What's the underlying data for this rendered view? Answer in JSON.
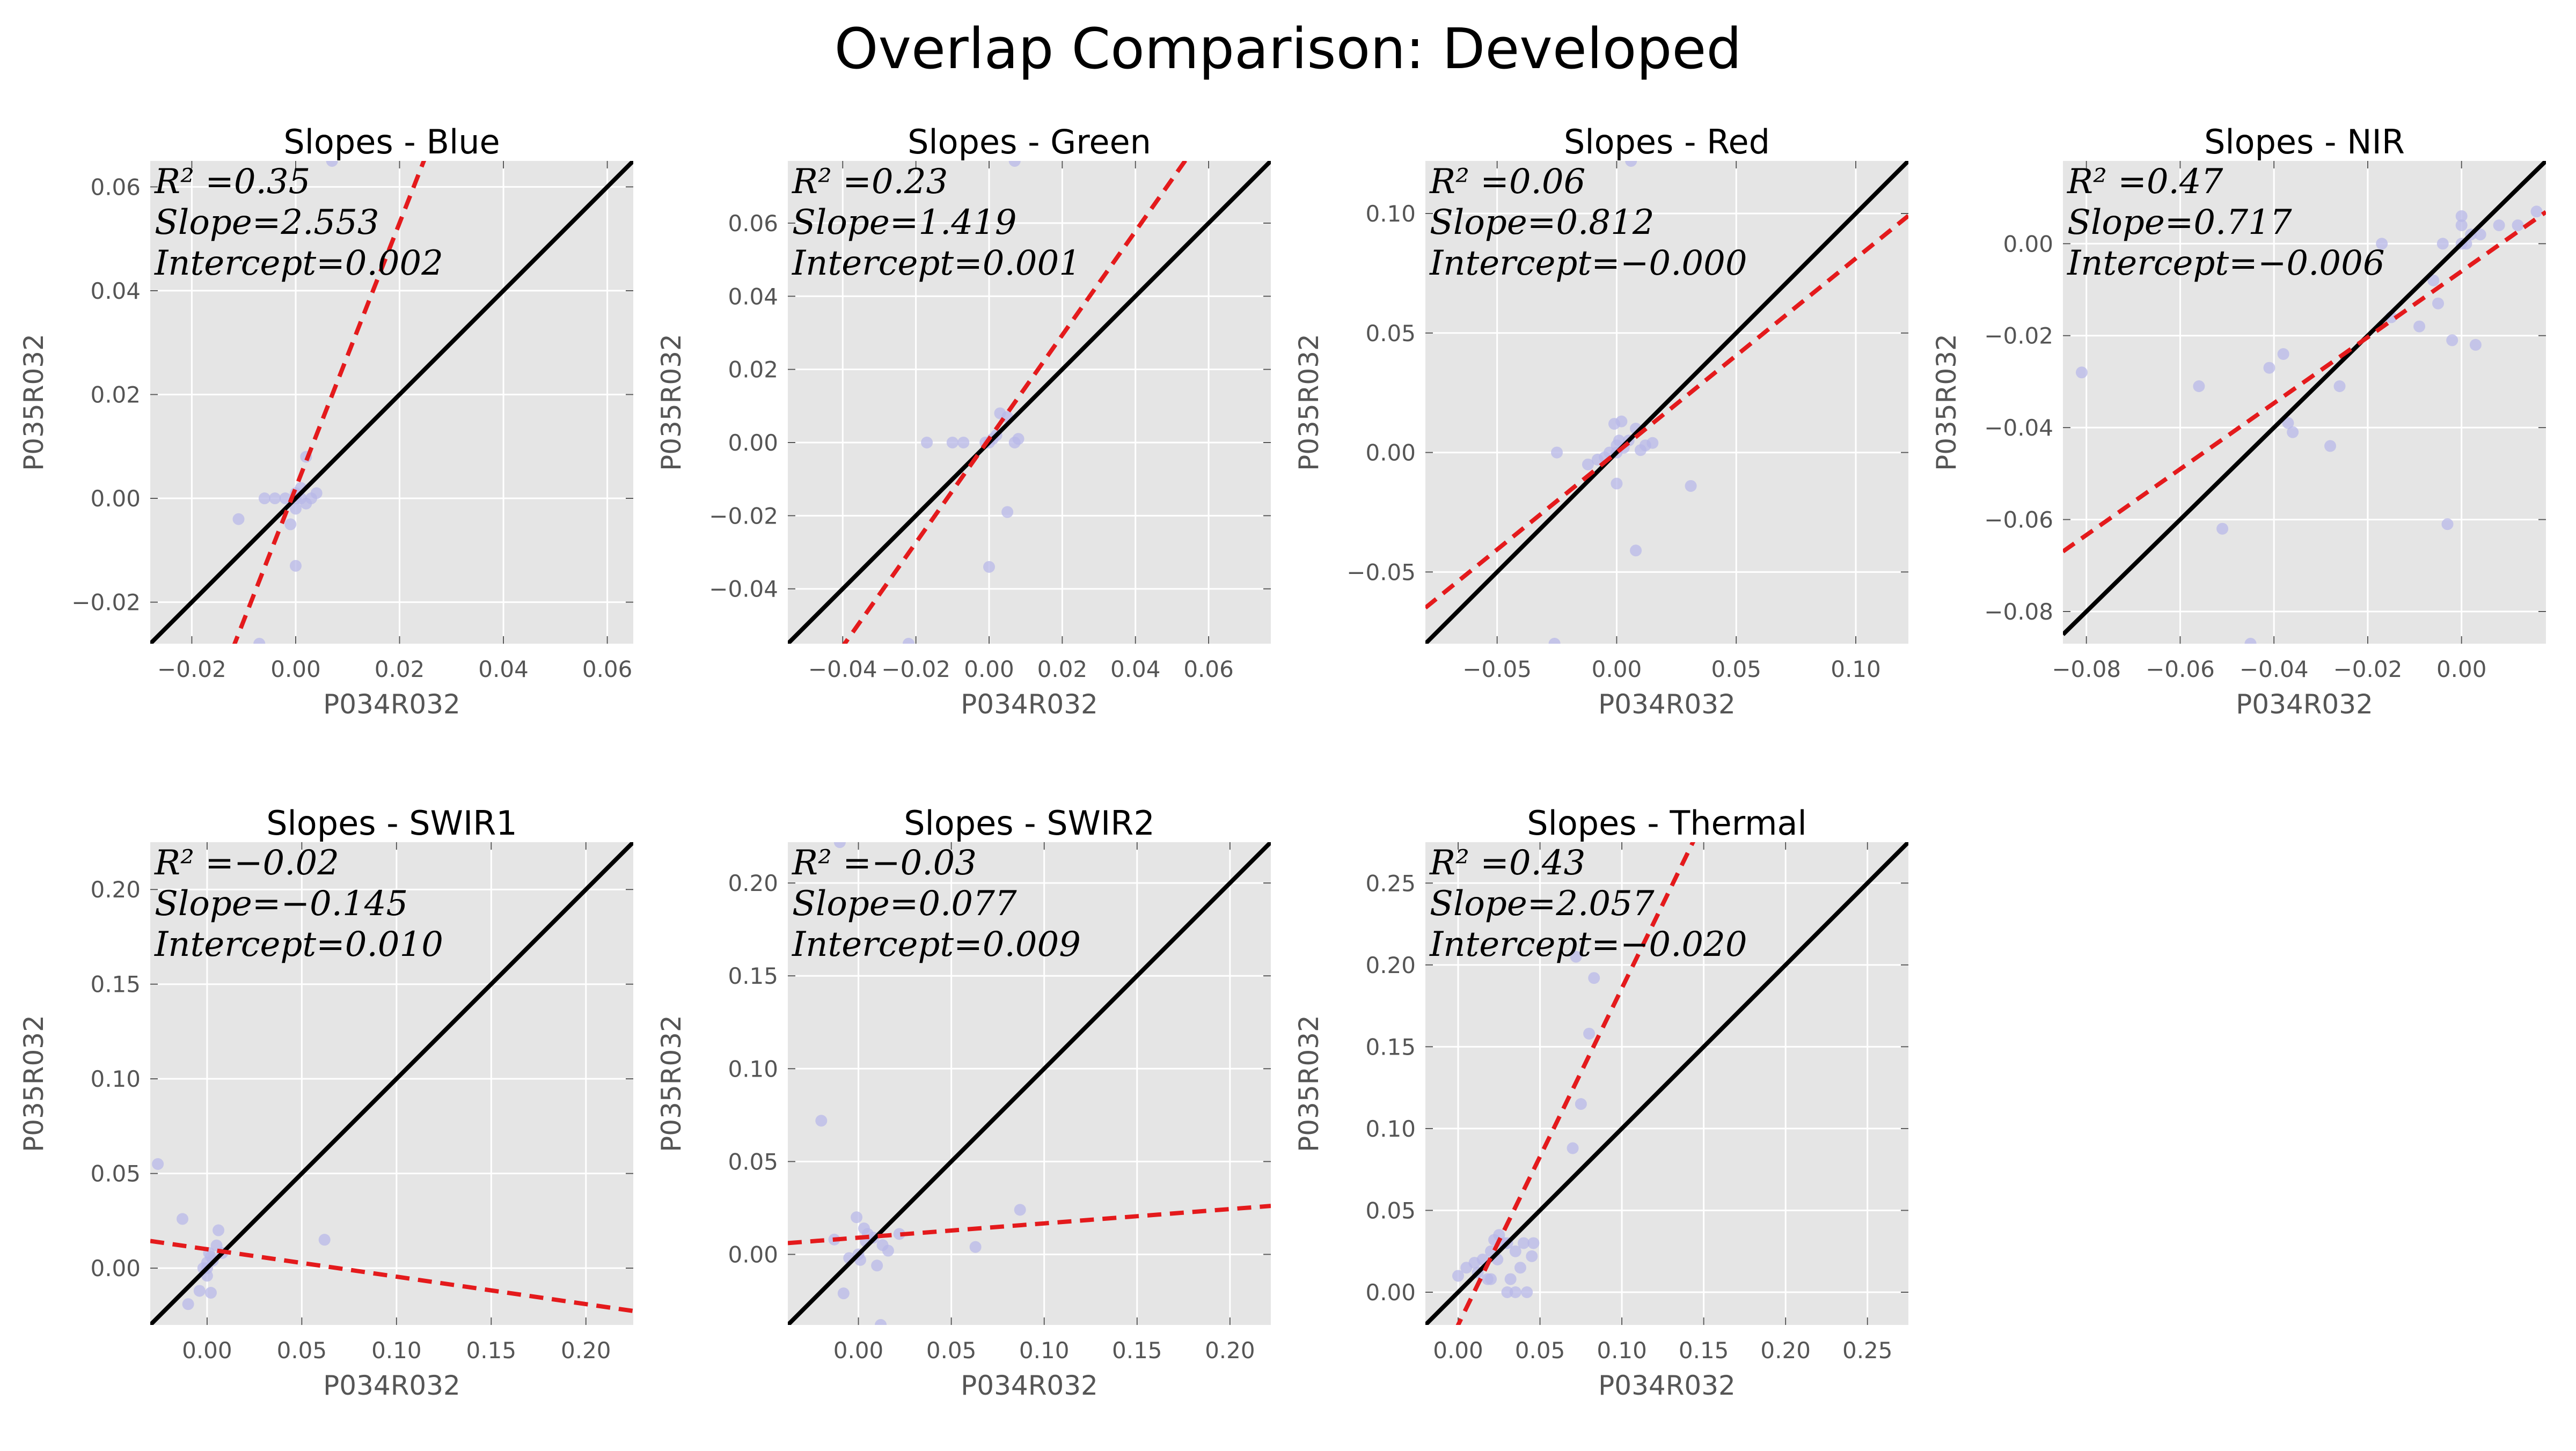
{
  "title": "Overlap Comparison: Developed",
  "colors": {
    "panel_bg": "#e5e5e5",
    "grid": "#ffffff",
    "identity_line": "#000000",
    "fit_line": "#e41a1c",
    "points": "#b8b8e8"
  },
  "chart_data": [
    {
      "type": "scatter",
      "title": "Slopes - Blue",
      "xlabel": "P034R032",
      "ylabel": "P035R032",
      "xlim": [
        -0.028,
        0.065
      ],
      "ylim": [
        -0.028,
        0.065
      ],
      "xticks": [
        -0.02,
        0.0,
        0.02,
        0.04,
        0.06
      ],
      "yticks": [
        -0.02,
        0.0,
        0.02,
        0.04,
        0.06
      ],
      "xtick_labels": [
        "−0.02",
        "0.00",
        "0.02",
        "0.04",
        "0.06"
      ],
      "ytick_labels": [
        "−0.02",
        "0.00",
        "0.02",
        "0.04",
        "0.06"
      ],
      "stats": {
        "r2_label": "R² =0.35",
        "slope_label": "Slope=2.553",
        "intercept_label": "Intercept=0.002"
      },
      "fit": {
        "slope": 2.553,
        "intercept": 0.002
      },
      "grid": true,
      "points": [
        [
          -0.011,
          -0.004
        ],
        [
          -0.006,
          0.0
        ],
        [
          -0.004,
          0.0
        ],
        [
          -0.002,
          0.0
        ],
        [
          -0.001,
          -0.005
        ],
        [
          0.0,
          -0.002
        ],
        [
          0.0,
          0.0
        ],
        [
          0.0,
          0.001
        ],
        [
          0.001,
          0.002
        ],
        [
          0.001,
          0.0
        ],
        [
          0.002,
          -0.001
        ],
        [
          0.002,
          0.008
        ],
        [
          0.003,
          0.0
        ],
        [
          0.004,
          0.001
        ],
        [
          0.0,
          -0.013
        ],
        [
          -0.007,
          -0.028
        ],
        [
          0.007,
          0.065
        ]
      ]
    },
    {
      "type": "scatter",
      "title": "Slopes - Green",
      "xlabel": "P034R032",
      "ylabel": "P035R032",
      "xlim": [
        -0.055,
        0.077
      ],
      "ylim": [
        -0.055,
        0.077
      ],
      "xticks": [
        -0.04,
        -0.02,
        0.0,
        0.02,
        0.04,
        0.06
      ],
      "yticks": [
        -0.04,
        -0.02,
        0.0,
        0.02,
        0.04,
        0.06
      ],
      "xtick_labels": [
        "−0.04",
        "−0.02",
        "0.00",
        "0.02",
        "0.04",
        "0.06"
      ],
      "ytick_labels": [
        "−0.04",
        "−0.02",
        "0.00",
        "0.02",
        "0.04",
        "0.06"
      ],
      "stats": {
        "r2_label": "R² =0.23",
        "slope_label": "Slope=1.419",
        "intercept_label": "Intercept=0.001"
      },
      "fit": {
        "slope": 1.419,
        "intercept": 0.001
      },
      "grid": true,
      "points": [
        [
          -0.017,
          0.0
        ],
        [
          -0.01,
          0.0
        ],
        [
          -0.007,
          0.0
        ],
        [
          -0.001,
          0.0
        ],
        [
          0.0,
          0.0
        ],
        [
          0.001,
          0.001
        ],
        [
          0.002,
          0.002
        ],
        [
          0.003,
          0.008
        ],
        [
          0.005,
          0.007
        ],
        [
          0.007,
          0.0
        ],
        [
          0.008,
          0.001
        ],
        [
          0.005,
          -0.019
        ],
        [
          0.0,
          -0.034
        ],
        [
          -0.022,
          -0.055
        ],
        [
          0.007,
          0.077
        ]
      ]
    },
    {
      "type": "scatter",
      "title": "Slopes - Red",
      "xlabel": "P034R032",
      "ylabel": "P035R032",
      "xlim": [
        -0.08,
        0.122
      ],
      "ylim": [
        -0.08,
        0.122
      ],
      "xticks": [
        -0.05,
        0.0,
        0.05,
        0.1
      ],
      "yticks": [
        -0.05,
        0.0,
        0.05,
        0.1
      ],
      "xtick_labels": [
        "−0.05",
        "0.00",
        "0.05",
        "0.10"
      ],
      "ytick_labels": [
        "−0.05",
        "0.00",
        "0.05",
        "0.10"
      ],
      "stats": {
        "r2_label": "R² =0.06",
        "slope_label": "Slope=0.812",
        "intercept_label": "Intercept=−0.000"
      },
      "fit": {
        "slope": 0.812,
        "intercept": 0.0
      },
      "grid": true,
      "points": [
        [
          -0.025,
          0.0
        ],
        [
          -0.012,
          -0.005
        ],
        [
          -0.008,
          -0.003
        ],
        [
          -0.005,
          -0.002
        ],
        [
          -0.003,
          0.0
        ],
        [
          -0.001,
          0.012
        ],
        [
          0.0,
          0.0
        ],
        [
          0.0,
          0.003
        ],
        [
          0.001,
          0.005
        ],
        [
          0.002,
          0.013
        ],
        [
          0.003,
          0.002
        ],
        [
          0.005,
          0.005
        ],
        [
          0.008,
          0.01
        ],
        [
          0.01,
          0.001
        ],
        [
          0.012,
          0.003
        ],
        [
          0.015,
          0.004
        ],
        [
          0.0,
          -0.013
        ],
        [
          0.008,
          -0.041
        ],
        [
          0.031,
          -0.014
        ],
        [
          -0.026,
          -0.08
        ],
        [
          0.006,
          0.122
        ]
      ]
    },
    {
      "type": "scatter",
      "title": "Slopes - NIR",
      "xlabel": "P034R032",
      "ylabel": "P035R032",
      "xlim": [
        -0.085,
        0.018
      ],
      "ylim": [
        -0.087,
        0.018
      ],
      "xticks": [
        -0.08,
        -0.06,
        -0.04,
        -0.02,
        0.0
      ],
      "yticks": [
        -0.08,
        -0.06,
        -0.04,
        -0.02,
        0.0
      ],
      "xtick_labels": [
        "−0.08",
        "−0.06",
        "−0.04",
        "−0.02",
        "0.00"
      ],
      "ytick_labels": [
        "−0.08",
        "−0.06",
        "−0.04",
        "−0.02",
        "0.00"
      ],
      "stats": {
        "r2_label": "R² =0.47",
        "slope_label": "Slope=0.717",
        "intercept_label": "Intercept=−0.006"
      },
      "fit": {
        "slope": 0.717,
        "intercept": -0.006
      },
      "grid": true,
      "points": [
        [
          -0.081,
          -0.028
        ],
        [
          -0.056,
          -0.031
        ],
        [
          -0.051,
          -0.062
        ],
        [
          -0.041,
          -0.027
        ],
        [
          -0.038,
          -0.024
        ],
        [
          -0.037,
          -0.039
        ],
        [
          -0.036,
          -0.041
        ],
        [
          -0.028,
          -0.044
        ],
        [
          -0.026,
          -0.031
        ],
        [
          -0.017,
          0.0
        ],
        [
          -0.015,
          -0.016
        ],
        [
          -0.009,
          -0.018
        ],
        [
          -0.006,
          -0.008
        ],
        [
          -0.005,
          -0.013
        ],
        [
          -0.003,
          -0.061
        ],
        [
          -0.002,
          -0.021
        ],
        [
          -0.004,
          0.0
        ],
        [
          0.0,
          0.004
        ],
        [
          0.0,
          0.006
        ],
        [
          0.001,
          0.0
        ],
        [
          0.002,
          0.002
        ],
        [
          0.003,
          -0.022
        ],
        [
          0.004,
          0.002
        ],
        [
          0.008,
          0.004
        ],
        [
          0.012,
          0.004
        ],
        [
          0.016,
          0.007
        ],
        [
          -0.045,
          -0.087
        ],
        [
          0.0,
          0.0
        ]
      ]
    },
    {
      "type": "scatter",
      "title": "Slopes - SWIR1",
      "xlabel": "P034R032",
      "ylabel": "P035R032",
      "xlim": [
        -0.03,
        0.225
      ],
      "ylim": [
        -0.03,
        0.225
      ],
      "xticks": [
        0.0,
        0.05,
        0.1,
        0.15,
        0.2
      ],
      "yticks": [
        0.0,
        0.05,
        0.1,
        0.15,
        0.2
      ],
      "xtick_labels": [
        "0.00",
        "0.05",
        "0.10",
        "0.15",
        "0.20"
      ],
      "ytick_labels": [
        "0.00",
        "0.05",
        "0.10",
        "0.15",
        "0.20"
      ],
      "stats": {
        "r2_label": "R² =−0.02",
        "slope_label": "Slope=−0.145",
        "intercept_label": "Intercept=0.010"
      },
      "fit": {
        "slope": -0.145,
        "intercept": 0.01
      },
      "grid": true,
      "points": [
        [
          -0.026,
          0.055
        ],
        [
          -0.013,
          0.026
        ],
        [
          -0.01,
          -0.019
        ],
        [
          -0.004,
          -0.012
        ],
        [
          -0.002,
          0.0
        ],
        [
          0.0,
          0.003
        ],
        [
          0.0,
          -0.004
        ],
        [
          0.001,
          0.008
        ],
        [
          0.002,
          0.006
        ],
        [
          0.002,
          -0.013
        ],
        [
          0.003,
          0.004
        ],
        [
          0.005,
          0.012
        ],
        [
          0.006,
          0.02
        ],
        [
          0.008,
          0.008
        ],
        [
          0.062,
          0.015
        ],
        [
          0.0,
          0.0
        ]
      ]
    },
    {
      "type": "scatter",
      "title": "Slopes - SWIR2",
      "xlabel": "P034R032",
      "ylabel": "P035R032",
      "xlim": [
        -0.038,
        0.222
      ],
      "ylim": [
        -0.038,
        0.222
      ],
      "xticks": [
        0.0,
        0.05,
        0.1,
        0.15,
        0.2
      ],
      "yticks": [
        0.0,
        0.05,
        0.1,
        0.15,
        0.2
      ],
      "xtick_labels": [
        "0.00",
        "0.05",
        "0.10",
        "0.15",
        "0.20"
      ],
      "ytick_labels": [
        "0.00",
        "0.05",
        "0.10",
        "0.15",
        "0.20"
      ],
      "stats": {
        "r2_label": "R² =−0.03",
        "slope_label": "Slope=0.077",
        "intercept_label": "Intercept=0.009"
      },
      "fit": {
        "slope": 0.077,
        "intercept": 0.009
      },
      "grid": true,
      "points": [
        [
          -0.02,
          0.072
        ],
        [
          -0.013,
          0.008
        ],
        [
          -0.008,
          -0.021
        ],
        [
          -0.005,
          -0.002
        ],
        [
          -0.001,
          0.02
        ],
        [
          0.0,
          0.0
        ],
        [
          0.001,
          -0.003
        ],
        [
          0.003,
          0.014
        ],
        [
          0.004,
          0.007
        ],
        [
          0.005,
          0.011
        ],
        [
          0.008,
          0.009
        ],
        [
          0.01,
          -0.006
        ],
        [
          0.013,
          0.005
        ],
        [
          0.016,
          0.002
        ],
        [
          0.022,
          0.011
        ],
        [
          0.063,
          0.004
        ],
        [
          0.087,
          0.024
        ],
        [
          0.012,
          -0.038
        ],
        [
          -0.01,
          0.222
        ]
      ]
    },
    {
      "type": "scatter",
      "title": "Slopes - Thermal",
      "xlabel": "P034R032",
      "ylabel": "P035R032",
      "xlim": [
        -0.02,
        0.275
      ],
      "ylim": [
        -0.02,
        0.275
      ],
      "xticks": [
        0.0,
        0.05,
        0.1,
        0.15,
        0.2,
        0.25
      ],
      "yticks": [
        0.0,
        0.05,
        0.1,
        0.15,
        0.2,
        0.25
      ],
      "xtick_labels": [
        "0.00",
        "0.05",
        "0.10",
        "0.15",
        "0.20",
        "0.25"
      ],
      "ytick_labels": [
        "0.00",
        "0.05",
        "0.10",
        "0.15",
        "0.20",
        "0.25"
      ],
      "stats": {
        "r2_label": "R² =0.43",
        "slope_label": "Slope=2.057",
        "intercept_label": "Intercept=−0.020"
      },
      "fit": {
        "slope": 2.057,
        "intercept": -0.02
      },
      "grid": true,
      "points": [
        [
          0.0,
          0.01
        ],
        [
          0.005,
          0.015
        ],
        [
          0.01,
          0.018
        ],
        [
          0.012,
          0.012
        ],
        [
          0.015,
          0.02
        ],
        [
          0.018,
          0.008
        ],
        [
          0.02,
          0.025
        ],
        [
          0.022,
          0.032
        ],
        [
          0.024,
          0.02
        ],
        [
          0.025,
          0.035
        ],
        [
          0.028,
          0.03
        ],
        [
          0.03,
          0.0
        ],
        [
          0.03,
          0.03
        ],
        [
          0.032,
          0.008
        ],
        [
          0.035,
          0.025
        ],
        [
          0.035,
          0.0
        ],
        [
          0.038,
          0.015
        ],
        [
          0.04,
          0.03
        ],
        [
          0.042,
          0.0
        ],
        [
          0.045,
          0.022
        ],
        [
          0.046,
          0.03
        ],
        [
          0.07,
          0.088
        ],
        [
          0.075,
          0.115
        ],
        [
          0.08,
          0.158
        ],
        [
          0.083,
          0.192
        ],
        [
          0.072,
          0.205
        ],
        [
          0.02,
          0.008
        ]
      ]
    }
  ]
}
